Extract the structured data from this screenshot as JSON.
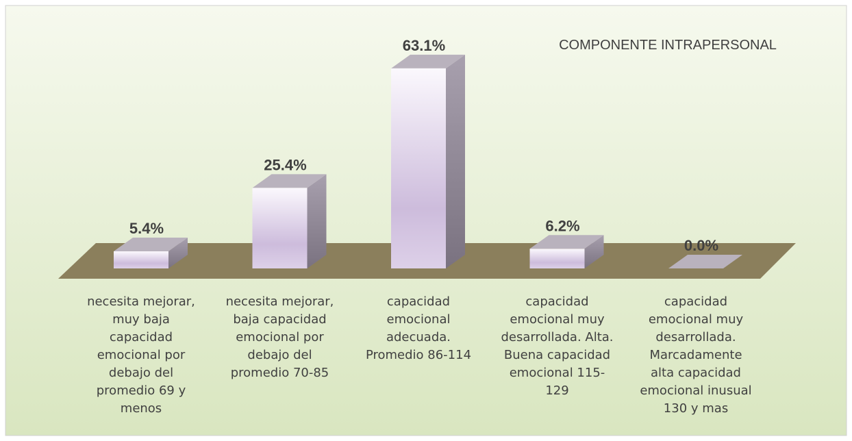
{
  "chart_data": {
    "type": "bar3d",
    "title": "COMPONENTE INTRAPERSONAL",
    "categories": [
      "necesita mejorar,\nmuy baja\ncapacidad\nemocional por\ndebajo del\npromedio 69 y\nmenos",
      "necesita mejorar,\nbaja capacidad\nemocional por\ndebajo del\npromedio 70-85",
      "capacidad\nemocional\nadecuada.\nPromedio 86-114",
      "capacidad\nemocional muy\ndesarrollada. Alta.\nBuena capacidad\nemocional 115-\n129",
      "capacidad\nemocional muy\ndesarrollada.\nMarcadamente\nalta capacidad\nemocional inusual\n130 y mas"
    ],
    "values": [
      5.4,
      25.4,
      63.1,
      6.2,
      0.0
    ],
    "value_labels": [
      "5.4%",
      "25.4%",
      "63.1%",
      "6.2%",
      "0.0%"
    ],
    "color": "#d9cbe6"
  }
}
